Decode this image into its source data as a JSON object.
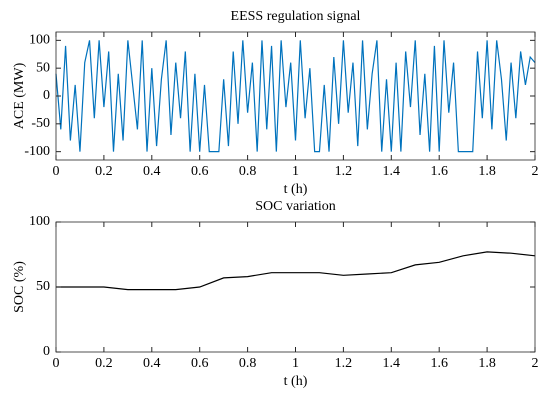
{
  "chart_data": [
    {
      "type": "line",
      "title": "EESS regulation signal",
      "xlabel": "t (h)",
      "ylabel": "ACE (MW)",
      "xlim": [
        0,
        2
      ],
      "xticks": [
        0,
        0.2,
        0.4,
        0.6,
        0.8,
        1,
        1.2,
        1.4,
        1.6,
        1.8,
        2
      ],
      "ylim": [
        -115,
        115
      ],
      "yticks": [
        -100,
        -50,
        0,
        50,
        100
      ],
      "series": [
        {
          "color": "#0072bd",
          "x": [
            0,
            0.02,
            0.04,
            0.06,
            0.08,
            0.1,
            0.12,
            0.14,
            0.16,
            0.18,
            0.2,
            0.22,
            0.24,
            0.26,
            0.28,
            0.3,
            0.32,
            0.34,
            0.36,
            0.38,
            0.4,
            0.42,
            0.44,
            0.46,
            0.48,
            0.5,
            0.52,
            0.54,
            0.56,
            0.58,
            0.6,
            0.62,
            0.64,
            0.66,
            0.68,
            0.7,
            0.72,
            0.74,
            0.76,
            0.78,
            0.8,
            0.82,
            0.84,
            0.86,
            0.88,
            0.9,
            0.92,
            0.94,
            0.96,
            0.98,
            1,
            1.02,
            1.04,
            1.06,
            1.08,
            1.1,
            1.12,
            1.14,
            1.16,
            1.18,
            1.2,
            1.22,
            1.24,
            1.26,
            1.28,
            1.3,
            1.32,
            1.34,
            1.36,
            1.38,
            1.4,
            1.42,
            1.44,
            1.46,
            1.48,
            1.5,
            1.52,
            1.54,
            1.56,
            1.58,
            1.6,
            1.62,
            1.64,
            1.66,
            1.68,
            1.7,
            1.72,
            1.74,
            1.76,
            1.78,
            1.8,
            1.82,
            1.84,
            1.86,
            1.88,
            1.9,
            1.92,
            1.94,
            1.96,
            1.98,
            2
          ],
          "values": [
            40,
            -60,
            90,
            -80,
            20,
            -100,
            60,
            100,
            -40,
            100,
            -20,
            80,
            -100,
            40,
            -80,
            100,
            20,
            -60,
            100,
            -100,
            50,
            -90,
            30,
            100,
            -70,
            60,
            -40,
            80,
            -100,
            40,
            -100,
            20,
            -100,
            -100,
            -100,
            30,
            -90,
            80,
            -50,
            100,
            -30,
            60,
            -100,
            100,
            -60,
            90,
            -100,
            100,
            -20,
            60,
            -80,
            100,
            -40,
            50,
            -100,
            -100,
            20,
            -100,
            70,
            -50,
            100,
            -30,
            60,
            -90,
            100,
            -60,
            40,
            100,
            -100,
            30,
            -100,
            60,
            -100,
            80,
            -20,
            100,
            -70,
            40,
            -100,
            90,
            -100,
            100,
            -30,
            60,
            -100,
            -100,
            -100,
            -100,
            80,
            -40,
            100,
            -60,
            100,
            30,
            -80,
            60,
            -40,
            80,
            20,
            70,
            60
          ]
        }
      ]
    },
    {
      "type": "line",
      "title": "SOC variation",
      "xlabel": "t (h)",
      "ylabel": "SOC (%)",
      "xlim": [
        0,
        2
      ],
      "xticks": [
        0,
        0.2,
        0.4,
        0.6,
        0.8,
        1,
        1.2,
        1.4,
        1.6,
        1.8,
        2
      ],
      "ylim": [
        0,
        100
      ],
      "yticks": [
        0,
        50,
        100
      ],
      "series": [
        {
          "color": "#000000",
          "x": [
            0,
            0.1,
            0.2,
            0.3,
            0.4,
            0.5,
            0.6,
            0.7,
            0.8,
            0.9,
            1,
            1.1,
            1.2,
            1.3,
            1.4,
            1.5,
            1.6,
            1.7,
            1.8,
            1.9,
            2
          ],
          "values": [
            50,
            50,
            50,
            48,
            48,
            48,
            50,
            57,
            58,
            61,
            61,
            61,
            59,
            60,
            61,
            67,
            69,
            74,
            77,
            76,
            74
          ]
        }
      ]
    }
  ]
}
